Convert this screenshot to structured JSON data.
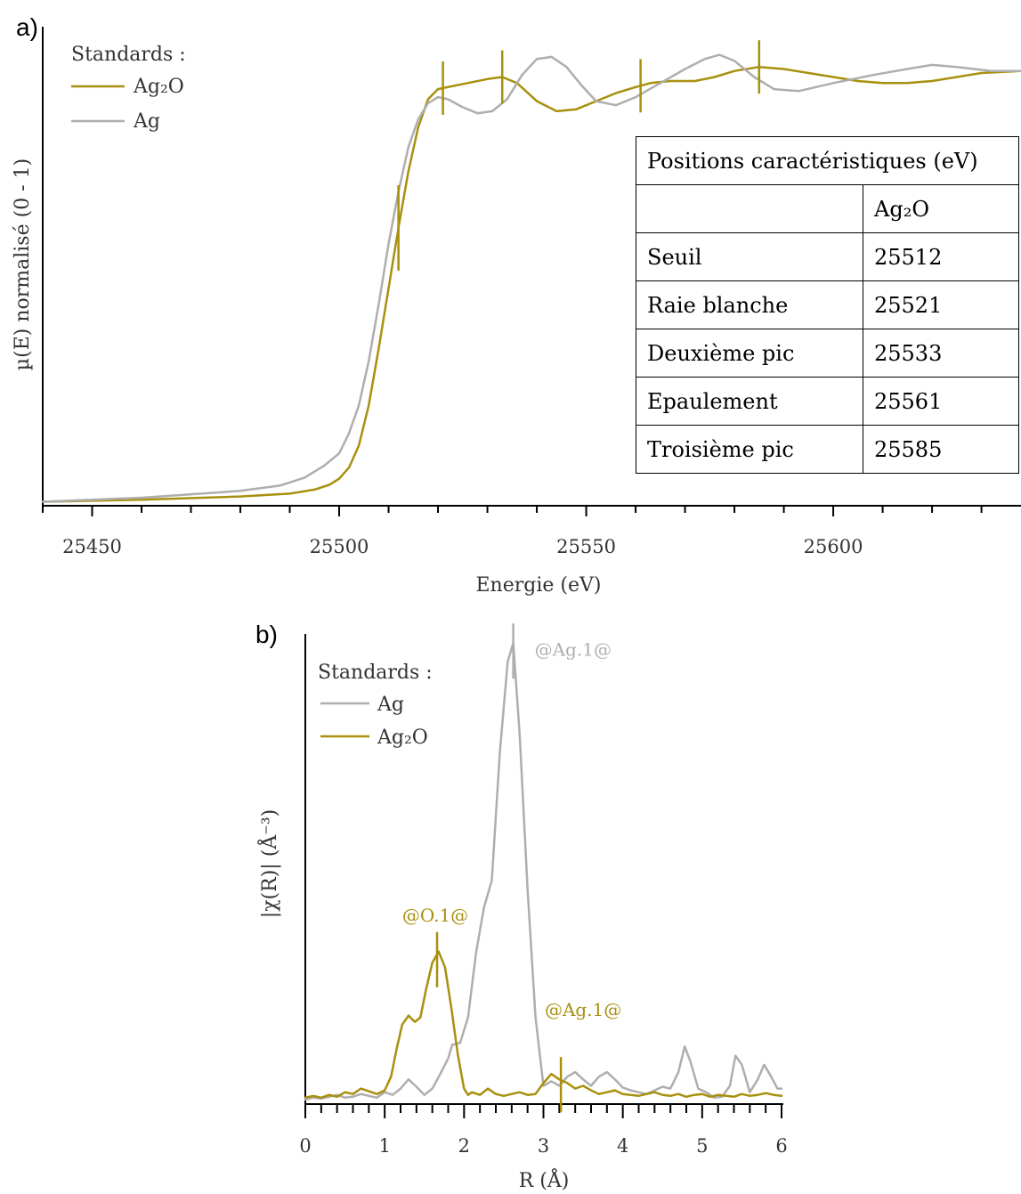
{
  "chart_data": [
    {
      "type": "line",
      "panel_label": "a)",
      "xlabel": "Energie (eV)",
      "ylabel": "µ(E) normalisé (0 - 1)",
      "xlim": [
        25440,
        25638
      ],
      "ylim": [
        -0.01,
        1.18
      ],
      "x_ticks": [
        25450,
        25500,
        25550,
        25600
      ],
      "x_minor_step": 10,
      "legend": {
        "title": "Standards :",
        "position": "top-left",
        "entries": [
          "Ag₂O",
          "Ag"
        ]
      },
      "colors": {
        "Ag2O": "#a8900e",
        "Ag": "#aeaeae"
      },
      "series": [
        {
          "name": "Ag₂O",
          "x": [
            25440,
            25460,
            25480,
            25490,
            25495,
            25498,
            25500,
            25502,
            25504,
            25506,
            25508,
            25510,
            25512,
            25514,
            25516,
            25518,
            25520,
            25522,
            25526,
            25530,
            25533,
            25536,
            25540,
            25544,
            25548,
            25552,
            25556,
            25560,
            25563,
            25567,
            25572,
            25576,
            25580,
            25585,
            25590,
            25595,
            25600,
            25605,
            25610,
            25615,
            25620,
            25625,
            25630,
            25638
          ],
          "y": [
            0.0,
            0.005,
            0.013,
            0.02,
            0.03,
            0.042,
            0.057,
            0.085,
            0.14,
            0.24,
            0.38,
            0.53,
            0.68,
            0.82,
            0.93,
            1.0,
            1.025,
            1.03,
            1.04,
            1.05,
            1.055,
            1.04,
            0.995,
            0.97,
            0.975,
            0.995,
            1.015,
            1.03,
            1.04,
            1.045,
            1.045,
            1.055,
            1.07,
            1.08,
            1.075,
            1.065,
            1.055,
            1.045,
            1.04,
            1.04,
            1.045,
            1.055,
            1.065,
            1.07
          ]
        },
        {
          "name": "Ag",
          "x": [
            25440,
            25460,
            25480,
            25488,
            25493,
            25497,
            25500,
            25502,
            25504,
            25506,
            25508,
            25510,
            25512,
            25514,
            25516,
            25518,
            25520,
            25522,
            25525,
            25528,
            25531,
            25534,
            25537,
            25540,
            25543,
            25546,
            25549,
            25552,
            25556,
            25560,
            25565,
            25570,
            25574,
            25577,
            25580,
            25584,
            25588,
            25593,
            25600,
            25608,
            25615,
            25620,
            25625,
            25632,
            25638
          ],
          "y": [
            0.0,
            0.01,
            0.027,
            0.04,
            0.06,
            0.09,
            0.12,
            0.17,
            0.24,
            0.35,
            0.49,
            0.64,
            0.77,
            0.88,
            0.95,
            0.99,
            1.005,
            1.0,
            0.98,
            0.965,
            0.97,
            1.0,
            1.06,
            1.1,
            1.105,
            1.08,
            1.035,
            0.995,
            0.985,
            1.005,
            1.04,
            1.075,
            1.1,
            1.11,
            1.095,
            1.055,
            1.025,
            1.02,
            1.04,
            1.06,
            1.075,
            1.085,
            1.08,
            1.07,
            1.07
          ]
        }
      ],
      "markers": {
        "series": "Ag₂O",
        "x": [
          25512,
          25521,
          25533,
          25561,
          25585
        ]
      },
      "table": {
        "title": "Positions caractéristiques (eV)",
        "column_header": "Ag₂O",
        "rows": [
          {
            "label": "Seuil",
            "value": "25512"
          },
          {
            "label": "Raie blanche",
            "value": "25521"
          },
          {
            "label": "Deuxième pic",
            "value": "25533"
          },
          {
            "label": "Epaulement",
            "value": "25561"
          },
          {
            "label": "Troisième pic",
            "value": "25585"
          }
        ]
      }
    },
    {
      "type": "line",
      "panel_label": "b)",
      "xlabel": "R (Å)",
      "ylabel": "|χ(R)| (Å⁻³)",
      "xlim": [
        0,
        6
      ],
      "ylim": [
        -0.05,
        5.1
      ],
      "x_ticks": [
        0,
        1,
        2,
        3,
        4,
        5,
        6
      ],
      "x_minor_step": 0.2,
      "legend": {
        "title": "Standards :",
        "position": "top-left",
        "entries": [
          "Ag",
          "Ag₂O"
        ]
      },
      "colors": {
        "Ag": "#aeaeae",
        "Ag2O": "#a8900e"
      },
      "series": [
        {
          "name": "Ag",
          "x": [
            0,
            0.1,
            0.2,
            0.3,
            0.4,
            0.5,
            0.6,
            0.7,
            0.8,
            0.9,
            1.0,
            1.1,
            1.2,
            1.3,
            1.4,
            1.5,
            1.6,
            1.7,
            1.8,
            1.85,
            1.95,
            2.05,
            2.15,
            2.25,
            2.35,
            2.45,
            2.55,
            2.62,
            2.7,
            2.8,
            2.9,
            3.0,
            3.1,
            3.2,
            3.3,
            3.4,
            3.5,
            3.6,
            3.7,
            3.8,
            3.9,
            4.0,
            4.1,
            4.2,
            4.3,
            4.4,
            4.5,
            4.6,
            4.7,
            4.78,
            4.85,
            4.95,
            5.05,
            5.15,
            5.25,
            5.35,
            5.42,
            5.5,
            5.6,
            5.7,
            5.78,
            5.85,
            5.95,
            6.0
          ],
          "y": [
            0.0,
            0.02,
            0.01,
            0.03,
            0.05,
            0.02,
            0.03,
            0.06,
            0.04,
            0.02,
            0.08,
            0.05,
            0.12,
            0.22,
            0.14,
            0.05,
            0.12,
            0.28,
            0.45,
            0.6,
            0.62,
            0.9,
            1.6,
            2.1,
            2.4,
            3.8,
            4.8,
            5.0,
            4.0,
            2.3,
            0.9,
            0.15,
            0.2,
            0.15,
            0.25,
            0.3,
            0.22,
            0.15,
            0.25,
            0.3,
            0.22,
            0.13,
            0.1,
            0.08,
            0.06,
            0.1,
            0.14,
            0.12,
            0.3,
            0.58,
            0.42,
            0.12,
            0.08,
            0.02,
            0.03,
            0.15,
            0.48,
            0.38,
            0.08,
            0.22,
            0.38,
            0.28,
            0.12,
            0.12
          ]
        },
        {
          "name": "Ag₂O",
          "x": [
            0,
            0.1,
            0.2,
            0.3,
            0.4,
            0.5,
            0.6,
            0.7,
            0.8,
            0.9,
            1.0,
            1.08,
            1.15,
            1.22,
            1.3,
            1.38,
            1.45,
            1.52,
            1.6,
            1.68,
            1.76,
            1.84,
            1.92,
            2.0,
            2.05,
            2.1,
            2.2,
            2.3,
            2.4,
            2.5,
            2.6,
            2.7,
            2.8,
            2.9,
            3.0,
            3.1,
            3.2,
            3.3,
            3.4,
            3.5,
            3.6,
            3.7,
            3.8,
            3.9,
            4.0,
            4.1,
            4.2,
            4.3,
            4.4,
            4.5,
            4.6,
            4.7,
            4.8,
            4.9,
            5.0,
            5.1,
            5.2,
            5.3,
            5.4,
            5.5,
            5.6,
            5.7,
            5.8,
            5.9,
            6.0
          ],
          "y": [
            0.02,
            0.04,
            0.02,
            0.05,
            0.03,
            0.08,
            0.06,
            0.12,
            0.09,
            0.06,
            0.1,
            0.25,
            0.55,
            0.82,
            0.92,
            0.85,
            0.9,
            1.2,
            1.5,
            1.62,
            1.45,
            1.0,
            0.5,
            0.12,
            0.05,
            0.08,
            0.05,
            0.12,
            0.06,
            0.04,
            0.06,
            0.08,
            0.05,
            0.06,
            0.18,
            0.28,
            0.22,
            0.18,
            0.12,
            0.15,
            0.1,
            0.06,
            0.08,
            0.1,
            0.06,
            0.05,
            0.04,
            0.06,
            0.08,
            0.05,
            0.04,
            0.06,
            0.03,
            0.05,
            0.06,
            0.03,
            0.05,
            0.04,
            0.03,
            0.06,
            0.04,
            0.05,
            0.07,
            0.05,
            0.04
          ]
        }
      ],
      "annotations": [
        {
          "text": "@Ag.1@",
          "series": "Ag",
          "x": 2.62,
          "y": 5.0
        },
        {
          "text": "@O.1@",
          "series": "Ag₂O",
          "x": 1.66,
          "y": 1.62
        },
        {
          "text": "@Ag.1@",
          "series": "Ag₂O",
          "x": 3.22,
          "y": 0.25
        }
      ]
    }
  ]
}
